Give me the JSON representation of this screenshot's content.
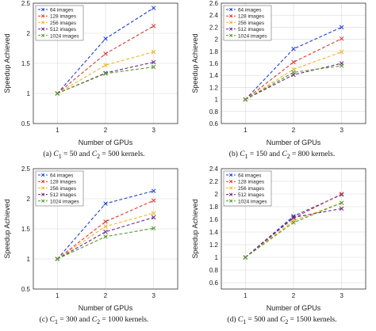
{
  "colors": [
    "#1f3fd6",
    "#d93a2b",
    "#f0b429",
    "#6a2a8a",
    "#5a9a2a"
  ],
  "chart_data": [
    {
      "type": "line",
      "xlabel": "Number of GPUs",
      "ylabel": "Speedup Achieved",
      "x": [
        1,
        2,
        3
      ],
      "xlim": [
        0.5,
        3.5
      ],
      "ylim": [
        0.5,
        2.5
      ],
      "yticks": [
        "0.5",
        "1",
        "1.5",
        "2",
        "2.5"
      ],
      "xticks": [
        "1",
        "2",
        "3"
      ],
      "legend_position": "top-left",
      "grid": true,
      "caption": {
        "label": "(a)",
        "c1": "50",
        "c2": "500"
      },
      "series": [
        {
          "name": "64 images",
          "values": [
            1,
            1.91,
            2.42
          ]
        },
        {
          "name": "128 images",
          "values": [
            1,
            1.66,
            2.12
          ]
        },
        {
          "name": "256 images",
          "values": [
            1,
            1.47,
            1.69
          ]
        },
        {
          "name": "512 images",
          "values": [
            1,
            1.34,
            1.52
          ]
        },
        {
          "name": "1024 images",
          "values": [
            1,
            1.33,
            1.44
          ]
        }
      ]
    },
    {
      "type": "line",
      "xlabel": "Number of GPUs",
      "ylabel": "Speedup Achieved",
      "x": [
        1,
        2,
        3
      ],
      "xlim": [
        0.5,
        3.5
      ],
      "ylim": [
        0.6,
        2.6
      ],
      "yticks": [
        "0.6",
        "0.8",
        "1",
        "1.2",
        "1.4",
        "1.6",
        "1.8",
        "2",
        "2.2",
        "2.4",
        "2.6"
      ],
      "xticks": [
        "1",
        "2",
        "3"
      ],
      "legend_position": "top-left",
      "grid": true,
      "caption": {
        "label": "(b)",
        "c1": "150",
        "c2": "800"
      },
      "series": [
        {
          "name": "64 images",
          "values": [
            1,
            1.84,
            2.2
          ]
        },
        {
          "name": "128 images",
          "values": [
            1,
            1.62,
            2.01
          ]
        },
        {
          "name": "256 images",
          "values": [
            1,
            1.5,
            1.79
          ]
        },
        {
          "name": "512 images",
          "values": [
            1,
            1.41,
            1.6
          ]
        },
        {
          "name": "1024 images",
          "values": [
            1,
            1.45,
            1.56
          ]
        }
      ]
    },
    {
      "type": "line",
      "xlabel": "Number of GPUs",
      "ylabel": "Speedup Achieved",
      "x": [
        1,
        2,
        3
      ],
      "xlim": [
        0.5,
        3.5
      ],
      "ylim": [
        0.5,
        2.5
      ],
      "yticks": [
        "0.5",
        "1",
        "1.5",
        "2",
        "2.5"
      ],
      "xticks": [
        "1",
        "2",
        "3"
      ],
      "legend_position": "top-left",
      "grid": true,
      "caption": {
        "label": "(c)",
        "c1": "300",
        "c2": "1000"
      },
      "series": [
        {
          "name": "64 images",
          "values": [
            1,
            1.92,
            2.13
          ]
        },
        {
          "name": "128 images",
          "values": [
            1,
            1.62,
            1.97
          ]
        },
        {
          "name": "256 images",
          "values": [
            1,
            1.54,
            1.76
          ]
        },
        {
          "name": "512 images",
          "values": [
            1,
            1.45,
            1.69
          ]
        },
        {
          "name": "1024 images",
          "values": [
            1,
            1.37,
            1.51
          ]
        }
      ]
    },
    {
      "type": "line",
      "xlabel": "Number of GPUs",
      "ylabel": "Speedup Achieved",
      "x": [
        1,
        2,
        3
      ],
      "xlim": [
        0.5,
        3.5
      ],
      "ylim": [
        0.5,
        2.4
      ],
      "yticks": [
        "0.6",
        "0.8",
        "1",
        "1.2",
        "1.4",
        "1.6",
        "1.8",
        "2",
        "2.2",
        "2.4"
      ],
      "xticks": [
        "1",
        "2",
        "3"
      ],
      "legend_position": "top-left",
      "grid": true,
      "caption": {
        "label": "(d)",
        "c1": "500",
        "c2": "1500"
      },
      "series": [
        {
          "name": "64 images",
          "values": [
            1,
            1.65,
            1.99
          ]
        },
        {
          "name": "128 images",
          "values": [
            1,
            1.62,
            2.0
          ]
        },
        {
          "name": "256 images",
          "values": [
            1,
            1.58,
            1.86
          ]
        },
        {
          "name": "512 images",
          "values": [
            1,
            1.63,
            1.77
          ]
        },
        {
          "name": "1024 images",
          "values": [
            1,
            1.55,
            1.86
          ]
        }
      ]
    }
  ]
}
